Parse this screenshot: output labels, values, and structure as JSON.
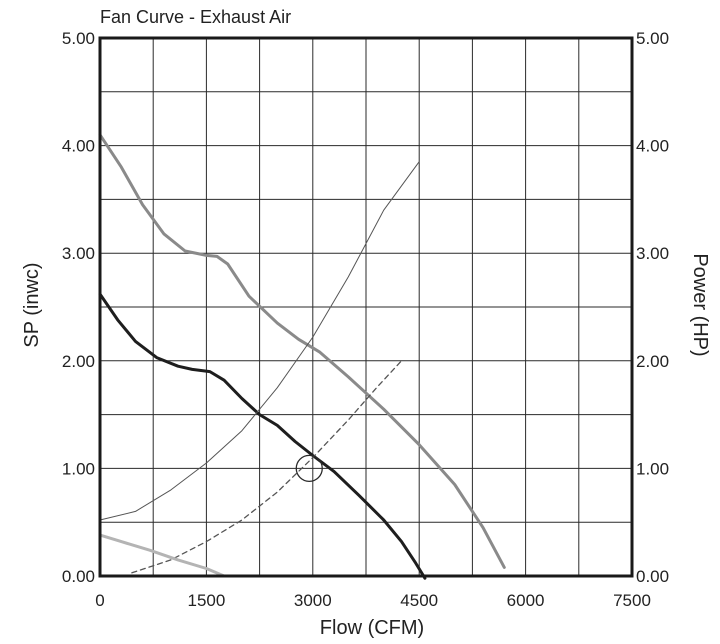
{
  "chart_data": {
    "type": "line",
    "title": "Fan Curve - Exhaust Air",
    "xlabel": "Flow (CFM)",
    "ylabel": "SP (inwc)",
    "y2label": "Power (HP)",
    "xlim": [
      0,
      7500
    ],
    "ylim": [
      0,
      5
    ],
    "y2lim": [
      0,
      5
    ],
    "x_ticks": [
      "0",
      "1500",
      "3000",
      "4500",
      "6000",
      "7500"
    ],
    "y_ticks": [
      "0.00",
      "1.00",
      "2.00",
      "3.00",
      "4.00",
      "5.00"
    ],
    "y2_ticks": [
      "0.00",
      "1.00",
      "2.00",
      "3.00",
      "4.00",
      "5.00"
    ],
    "grid": true,
    "colors": {
      "grid": "#2a2a2a",
      "static_pressure": "#1e1e1e",
      "power": "#8a8a8a",
      "thin": "#555555",
      "light": "#b4b4b4"
    },
    "series": [
      {
        "style": "solid-thick",
        "color_key": "static_pressure",
        "points": [
          [
            0,
            2.62
          ],
          [
            250,
            2.38
          ],
          [
            500,
            2.18
          ],
          [
            800,
            2.03
          ],
          [
            1100,
            1.95
          ],
          [
            1300,
            1.92
          ],
          [
            1550,
            1.9
          ],
          [
            1750,
            1.82
          ],
          [
            2000,
            1.65
          ],
          [
            2250,
            1.5
          ],
          [
            2500,
            1.4
          ],
          [
            2750,
            1.25
          ],
          [
            3000,
            1.12
          ],
          [
            3300,
            0.97
          ],
          [
            3650,
            0.75
          ],
          [
            4000,
            0.52
          ],
          [
            4250,
            0.32
          ],
          [
            4450,
            0.12
          ],
          [
            4580,
            -0.02
          ]
        ]
      },
      {
        "style": "solid-thick",
        "color_key": "power",
        "points": [
          [
            0,
            4.1
          ],
          [
            300,
            3.8
          ],
          [
            600,
            3.45
          ],
          [
            900,
            3.18
          ],
          [
            1200,
            3.02
          ],
          [
            1500,
            2.98
          ],
          [
            1650,
            2.97
          ],
          [
            1800,
            2.9
          ],
          [
            2100,
            2.6
          ],
          [
            2500,
            2.35
          ],
          [
            2800,
            2.2
          ],
          [
            3100,
            2.08
          ],
          [
            3500,
            1.85
          ],
          [
            4000,
            1.55
          ],
          [
            4500,
            1.22
          ],
          [
            5000,
            0.85
          ],
          [
            5400,
            0.45
          ],
          [
            5700,
            0.08
          ]
        ]
      },
      {
        "style": "solid-thin",
        "color_key": "thin",
        "points": [
          [
            0,
            0.52
          ],
          [
            500,
            0.6
          ],
          [
            1000,
            0.8
          ],
          [
            1500,
            1.05
          ],
          [
            2000,
            1.35
          ],
          [
            2500,
            1.75
          ],
          [
            3000,
            2.22
          ],
          [
            3500,
            2.78
          ],
          [
            4000,
            3.4
          ],
          [
            4500,
            3.85
          ]
        ]
      },
      {
        "style": "dashed",
        "color_key": "thin",
        "points": [
          [
            450,
            0.03
          ],
          [
            1000,
            0.15
          ],
          [
            1500,
            0.32
          ],
          [
            2000,
            0.52
          ],
          [
            2500,
            0.78
          ],
          [
            3000,
            1.1
          ],
          [
            3500,
            1.45
          ],
          [
            3900,
            1.75
          ],
          [
            4250,
            2.0
          ]
        ]
      },
      {
        "style": "solid-thick",
        "color_key": "light",
        "points": [
          [
            0,
            0.38
          ],
          [
            300,
            0.32
          ],
          [
            700,
            0.24
          ],
          [
            1100,
            0.15
          ],
          [
            1500,
            0.07
          ],
          [
            1750,
            0.0
          ]
        ]
      }
    ],
    "operating_point": {
      "x": 2950,
      "y": 1.0
    }
  }
}
